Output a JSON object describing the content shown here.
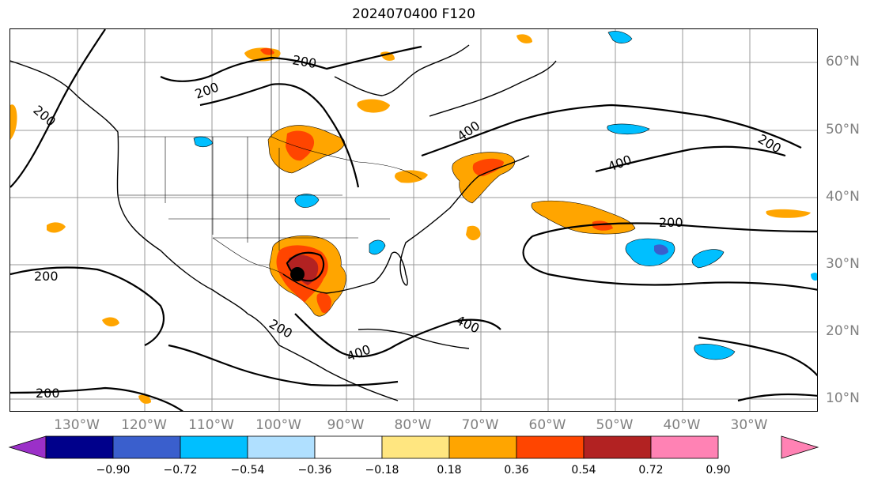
{
  "title": "2024070400 F120",
  "longitude_labels": [
    "130°W",
    "120°W",
    "110°W",
    "100°W",
    "90°W",
    "80°W",
    "70°W",
    "60°W",
    "50°W",
    "40°W",
    "30°W"
  ],
  "latitude_labels": [
    "60°N",
    "50°N",
    "40°N",
    "30°N",
    "20°N",
    "10°N"
  ],
  "contour_labels": [
    "200",
    "200",
    "200",
    "200",
    "200",
    "200",
    "400",
    "400",
    "400",
    "200",
    "200",
    "400"
  ],
  "colorbar": {
    "tick_labels": [
      "−0.90",
      "−0.72",
      "−0.54",
      "−0.36",
      "−0.18",
      "0.18",
      "0.36",
      "0.54",
      "0.72",
      "0.90"
    ],
    "colors": [
      "#9b30c8",
      "#00008b",
      "#3a5fcd",
      "#00bfff",
      "#b0e0ff",
      "#ffffff",
      "#ffe680",
      "#ffa500",
      "#ff4500",
      "#b22222",
      "#ff82b4"
    ]
  },
  "colors": {
    "grid": "#999999",
    "coast": "#000000",
    "contour": "#000000"
  }
}
